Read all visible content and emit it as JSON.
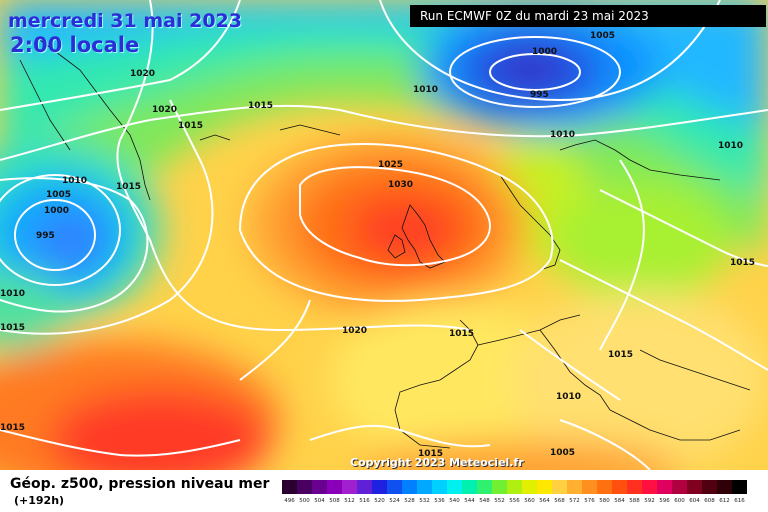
{
  "header": {
    "date": "mercredi 31 mai 2023",
    "time": "2:00 locale",
    "run": "Run ECMWF 0Z du mardi 23 mai 2023"
  },
  "copyright": "Copyright 2023 Meteociel.fr",
  "footer": {
    "title": "Géop. z500, pression niveau mer",
    "lead": "(+192h)"
  },
  "legend": {
    "values": [
      "496",
      "500",
      "504",
      "508",
      "512",
      "516",
      "520",
      "524",
      "528",
      "532",
      "536",
      "540",
      "544",
      "548",
      "552",
      "556",
      "560",
      "564",
      "568",
      "572",
      "576",
      "580",
      "584",
      "588",
      "592",
      "596",
      "600",
      "604",
      "608",
      "612",
      "616"
    ],
    "colors": [
      "#2a0030",
      "#4a0060",
      "#6a0090",
      "#8a00b8",
      "#a020d0",
      "#6020d8",
      "#2020e0",
      "#1050f0",
      "#0080ff",
      "#00a8ff",
      "#00d0ff",
      "#00f0f0",
      "#00f0b0",
      "#30f070",
      "#70f030",
      "#b0f010",
      "#e0f000",
      "#ffe800",
      "#ffd040",
      "#ffb030",
      "#ff9020",
      "#ff7010",
      "#ff5010",
      "#ff3020",
      "#ff1040",
      "#e00060",
      "#b00040",
      "#800020",
      "#500010",
      "#300008",
      "#000000"
    ]
  },
  "isobars": [
    "1005",
    "1000",
    "995",
    "1010",
    "1010",
    "1020",
    "1020",
    "1015",
    "1015",
    "1010",
    "1015",
    "1005",
    "1000",
    "995",
    "1010",
    "1015",
    "1025",
    "1030",
    "1020",
    "1015",
    "1015",
    "1015",
    "1010",
    "1005",
    "1015",
    "1010",
    "1015"
  ]
}
